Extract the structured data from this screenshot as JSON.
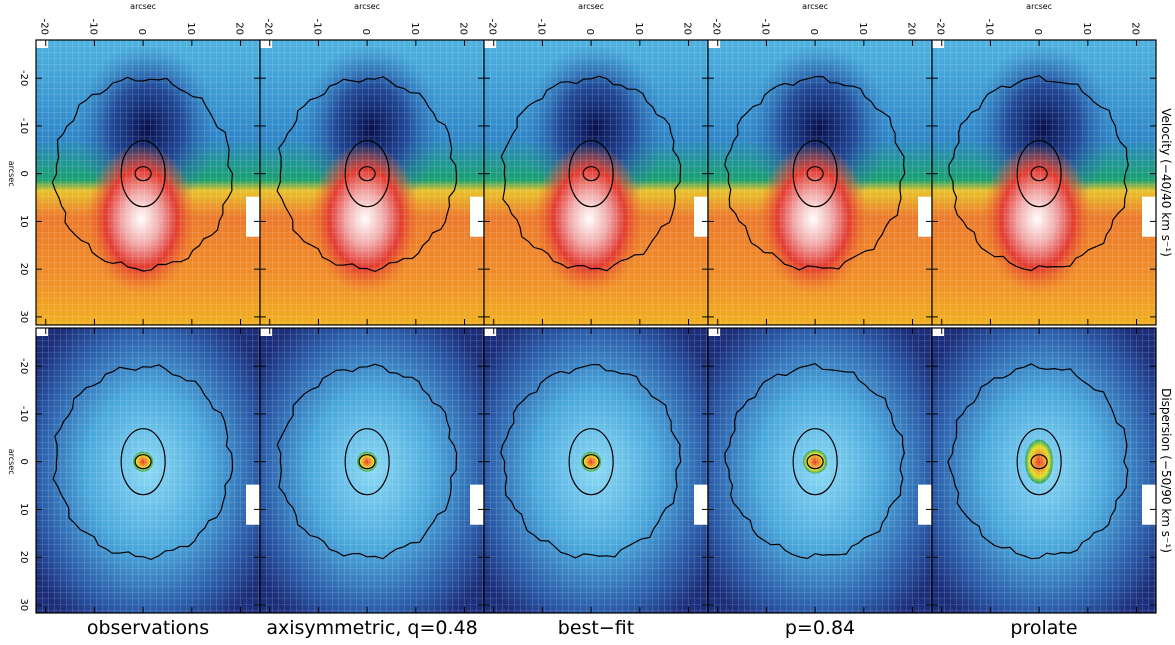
{
  "figure": {
    "x_axis_label": "arcsec",
    "y_axis_label": "arcsec",
    "xlim": [
      -22,
      24
    ],
    "ylim": [
      -28,
      31.7
    ],
    "xticks": [
      -20,
      -10,
      0,
      10,
      20
    ],
    "yticks": [
      -20,
      -10,
      0,
      10,
      20,
      30
    ],
    "rows": [
      "Velocity (−40/40 km s⁻¹)",
      "Dispersion (−50/90 km s⁻¹)"
    ],
    "columns": [
      "observations",
      "axisymmetric, q=0.48",
      "best−fit",
      "p=0.84",
      "prolate"
    ]
  }
}
